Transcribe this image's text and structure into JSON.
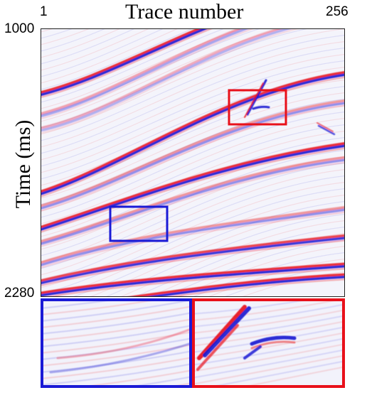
{
  "figure": {
    "x_axis": {
      "title": "Trace number",
      "first_label": "1",
      "last_label": "256"
    },
    "y_axis": {
      "title": "Time (ms)",
      "top_label": "1000",
      "bottom_label": "2280"
    },
    "colors": {
      "positive": "#e8101a",
      "negative": "#1414d2",
      "background": "#f4f4fb",
      "highlight_red": "#e8101a",
      "highlight_blue": "#1a1ad6"
    },
    "zoom_insets": [
      {
        "color": "blue"
      },
      {
        "color": "red"
      }
    ]
  }
}
